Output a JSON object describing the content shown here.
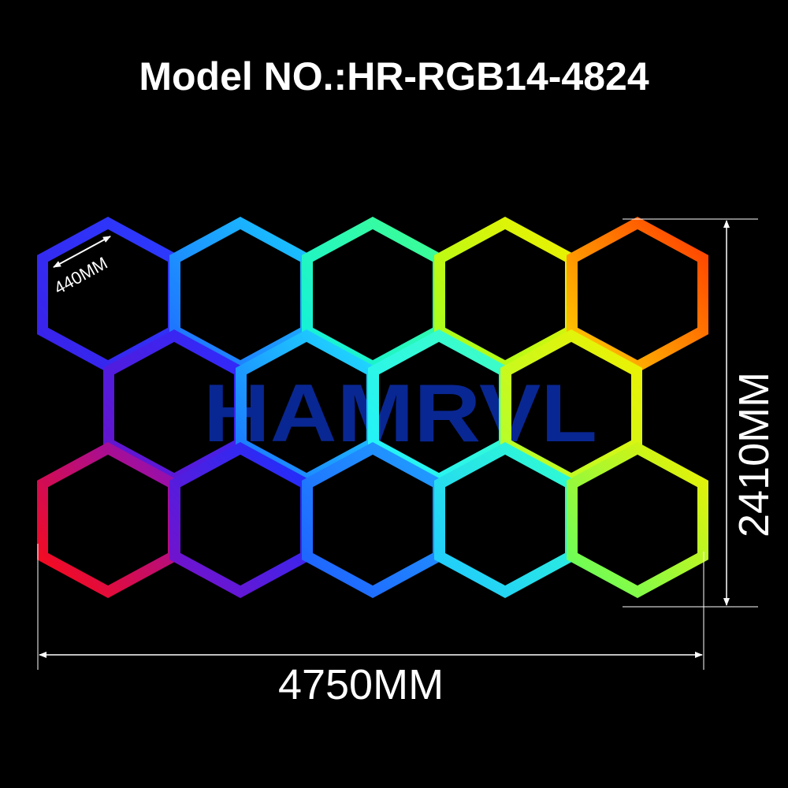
{
  "title": "Model NO.:HR-RGB14-4824",
  "watermark": "HAMRVL",
  "colors": {
    "background": "#000000",
    "dimension": "#ffffff",
    "watermark": "#0a2a9a"
  },
  "dimensions": {
    "hex_side": "440MM",
    "total_width": "4750MM",
    "total_height": "2410MM"
  },
  "layout": {
    "rows": [
      {
        "count": 5,
        "gradients": [
          [
            "#3a20e8",
            "#2a3cff"
          ],
          [
            "#1f6bff",
            "#19c8ff"
          ],
          [
            "#10f0e0",
            "#40ff90"
          ],
          [
            "#a0ff20",
            "#f0f000"
          ],
          [
            "#ffd000",
            "#ff3a00"
          ]
        ]
      },
      {
        "count": 4,
        "gradients": [
          [
            "#6a12c8",
            "#2a2cff"
          ],
          [
            "#1a70ff",
            "#20e0ff"
          ],
          [
            "#20f0ff",
            "#40ffc0"
          ],
          [
            "#b0ff30",
            "#f0f000"
          ]
        ]
      },
      {
        "count": 5,
        "gradients": [
          [
            "#ff0a10",
            "#8a10c0"
          ],
          [
            "#7a10c8",
            "#1a30ff"
          ],
          [
            "#1f60ff",
            "#20a0ff"
          ],
          [
            "#20c8ff",
            "#30ffd0"
          ],
          [
            "#60ff60",
            "#f0f000"
          ]
        ]
      }
    ]
  }
}
